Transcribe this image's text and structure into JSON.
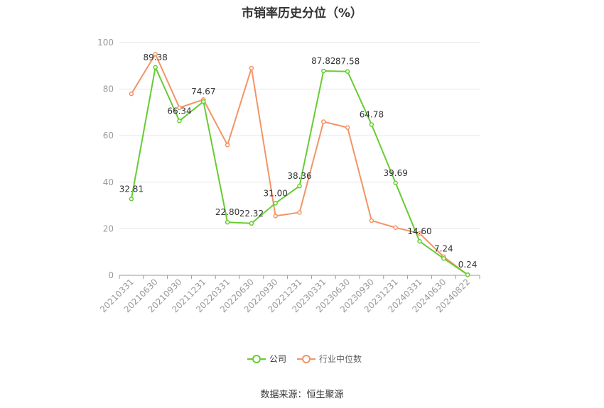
{
  "chart_data": {
    "type": "line",
    "title": "市销率历史分位（%）",
    "categories": [
      "20210331",
      "20210630",
      "20210930",
      "20211231",
      "20220331",
      "20220630",
      "20220930",
      "20221231",
      "20230331",
      "20230630",
      "20230930",
      "20231231",
      "20240331",
      "20240630",
      "20240822"
    ],
    "ylim": [
      0,
      100
    ],
    "yticks": [
      0,
      20,
      40,
      60,
      80,
      100
    ],
    "grid": true,
    "legend_position": "bottom",
    "series": [
      {
        "name": "公司",
        "color": "#66cc33",
        "values": [
          32.81,
          89.38,
          66.34,
          74.67,
          22.8,
          22.32,
          31.0,
          38.36,
          87.82,
          87.58,
          64.78,
          39.69,
          14.6,
          7.24,
          0.24
        ],
        "labels": [
          "32.81",
          "89.38",
          "66.34",
          "74.67",
          "22.80",
          "22.32",
          "31.00",
          "38.36",
          "87.82",
          "87.58",
          "64.78",
          "39.69",
          "14.60",
          "7.24",
          "0.24"
        ]
      },
      {
        "name": "行业中位数",
        "color": "#f29466",
        "values": [
          78,
          95,
          72,
          75.5,
          56,
          89,
          25.5,
          27,
          66,
          63.5,
          23.5,
          20.5,
          18,
          8,
          0.24
        ]
      }
    ]
  },
  "source": "数据来源：恒生聚源"
}
